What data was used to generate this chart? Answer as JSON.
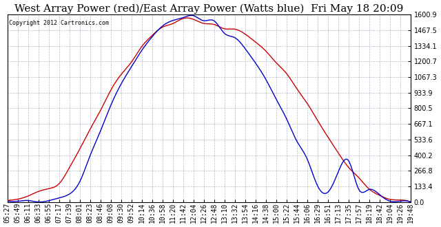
{
  "title": "West Array Power (red)/East Array Power (Watts blue)  Fri May 18 20:09",
  "copyright": "Copyright 2012 Cartronics.com",
  "ymax": 1600.9,
  "ymin": 0.0,
  "yticks": [
    0.0,
    133.4,
    266.8,
    400.2,
    533.6,
    667.1,
    800.5,
    933.9,
    1067.3,
    1200.7,
    1334.1,
    1467.5,
    1600.9
  ],
  "red_color": "#cc0000",
  "blue_color": "#0000cc",
  "bg_color": "#ffffff",
  "grid_color": "#8888aa",
  "title_fontsize": 11,
  "tick_label_fontsize": 7,
  "x_labels": [
    "05:27",
    "05:49",
    "06:11",
    "06:33",
    "06:55",
    "07:17",
    "07:39",
    "08:01",
    "08:23",
    "08:46",
    "09:08",
    "09:30",
    "09:52",
    "10:14",
    "10:36",
    "10:58",
    "11:20",
    "11:42",
    "12:04",
    "12:26",
    "12:48",
    "13:10",
    "13:32",
    "13:54",
    "14:16",
    "14:38",
    "15:00",
    "15:22",
    "15:44",
    "16:06",
    "16:29",
    "16:51",
    "17:13",
    "17:35",
    "17:57",
    "18:19",
    "18:42",
    "19:04",
    "19:26",
    "19:48"
  ],
  "red_values": [
    5,
    20,
    60,
    90,
    110,
    160,
    290,
    450,
    620,
    780,
    950,
    1080,
    1200,
    1320,
    1420,
    1490,
    1530,
    1550,
    1560,
    1555,
    1540,
    1510,
    1480,
    1420,
    1360,
    1280,
    1190,
    1090,
    970,
    840,
    700,
    560,
    420,
    300,
    200,
    110,
    55,
    25,
    10,
    5
  ],
  "blue_values": [
    3,
    5,
    10,
    15,
    20,
    30,
    60,
    180,
    390,
    600,
    820,
    1010,
    1160,
    1300,
    1420,
    1500,
    1550,
    1570,
    1575,
    1560,
    1510,
    1450,
    1380,
    1300,
    1190,
    1050,
    880,
    700,
    520,
    370,
    100,
    50,
    200,
    320,
    210,
    120,
    60,
    20,
    5,
    3
  ],
  "red_noise_seed": 10,
  "blue_noise_seed": 20
}
